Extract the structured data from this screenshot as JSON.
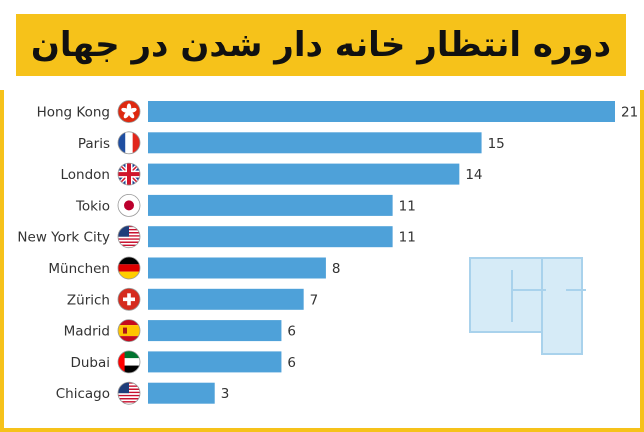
{
  "title": "دوره انتظار خانه دار شدن در جهان",
  "chart_data": {
    "type": "bar",
    "orientation": "horizontal",
    "categories": [
      "Hong Kong",
      "Paris",
      "London",
      "Tokio",
      "New York City",
      "München",
      "Zürich",
      "Madrid",
      "Dubai",
      "Chicago"
    ],
    "values": [
      21,
      15,
      14,
      11,
      11,
      8,
      7,
      6,
      6,
      3
    ],
    "flags": [
      "hong-kong-flag-icon",
      "france-flag-icon",
      "uk-flag-icon",
      "japan-flag-icon",
      "usa-flag-icon",
      "germany-flag-icon",
      "switzerland-flag-icon",
      "spain-flag-icon",
      "uae-flag-icon",
      "usa-flag-icon"
    ],
    "bar_color": "#4ea1d9",
    "xlim": [
      0,
      21
    ],
    "grid": false,
    "legend": false
  },
  "colors": {
    "accent": "#f6c21a",
    "bar": "#4ea1d9"
  }
}
